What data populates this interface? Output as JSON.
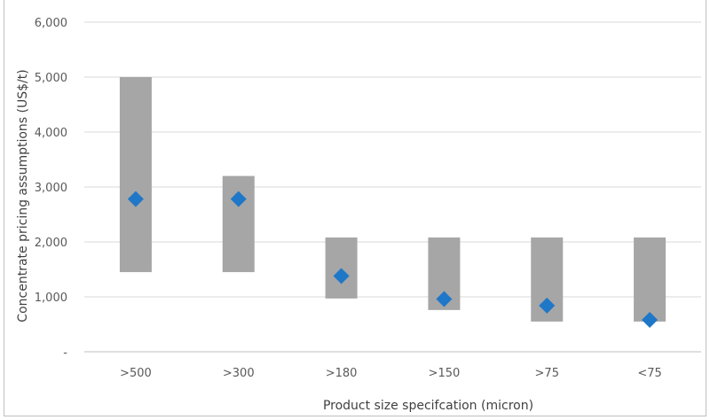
{
  "chart_data": {
    "type": "range-bar",
    "title": "",
    "xlabel": "Product size specifcation (micron)",
    "ylabel": "Concentrate pricing assumptions (US$/t)",
    "categories": [
      ">500",
      ">300",
      ">180",
      ">150",
      ">75",
      "<75"
    ],
    "series": [
      {
        "low": [
          1450,
          1450,
          970,
          760,
          550,
          550
        ],
        "high": [
          5000,
          3200,
          2080,
          2080,
          2080,
          2080
        ]
      },
      {
        "values": [
          2780,
          2780,
          1380,
          960,
          840,
          580
        ]
      }
    ],
    "ylim": [
      0,
      6000
    ],
    "yticks": [
      "-",
      "1,000",
      "2,000",
      "3,000",
      "4,000",
      "5,000",
      "6,000"
    ],
    "grid": true,
    "colors": {
      "range_bar": "#a6a6a6",
      "marker": "#1f77c8",
      "grid": "#d9d9d9",
      "title": "#2e6ecb"
    }
  }
}
